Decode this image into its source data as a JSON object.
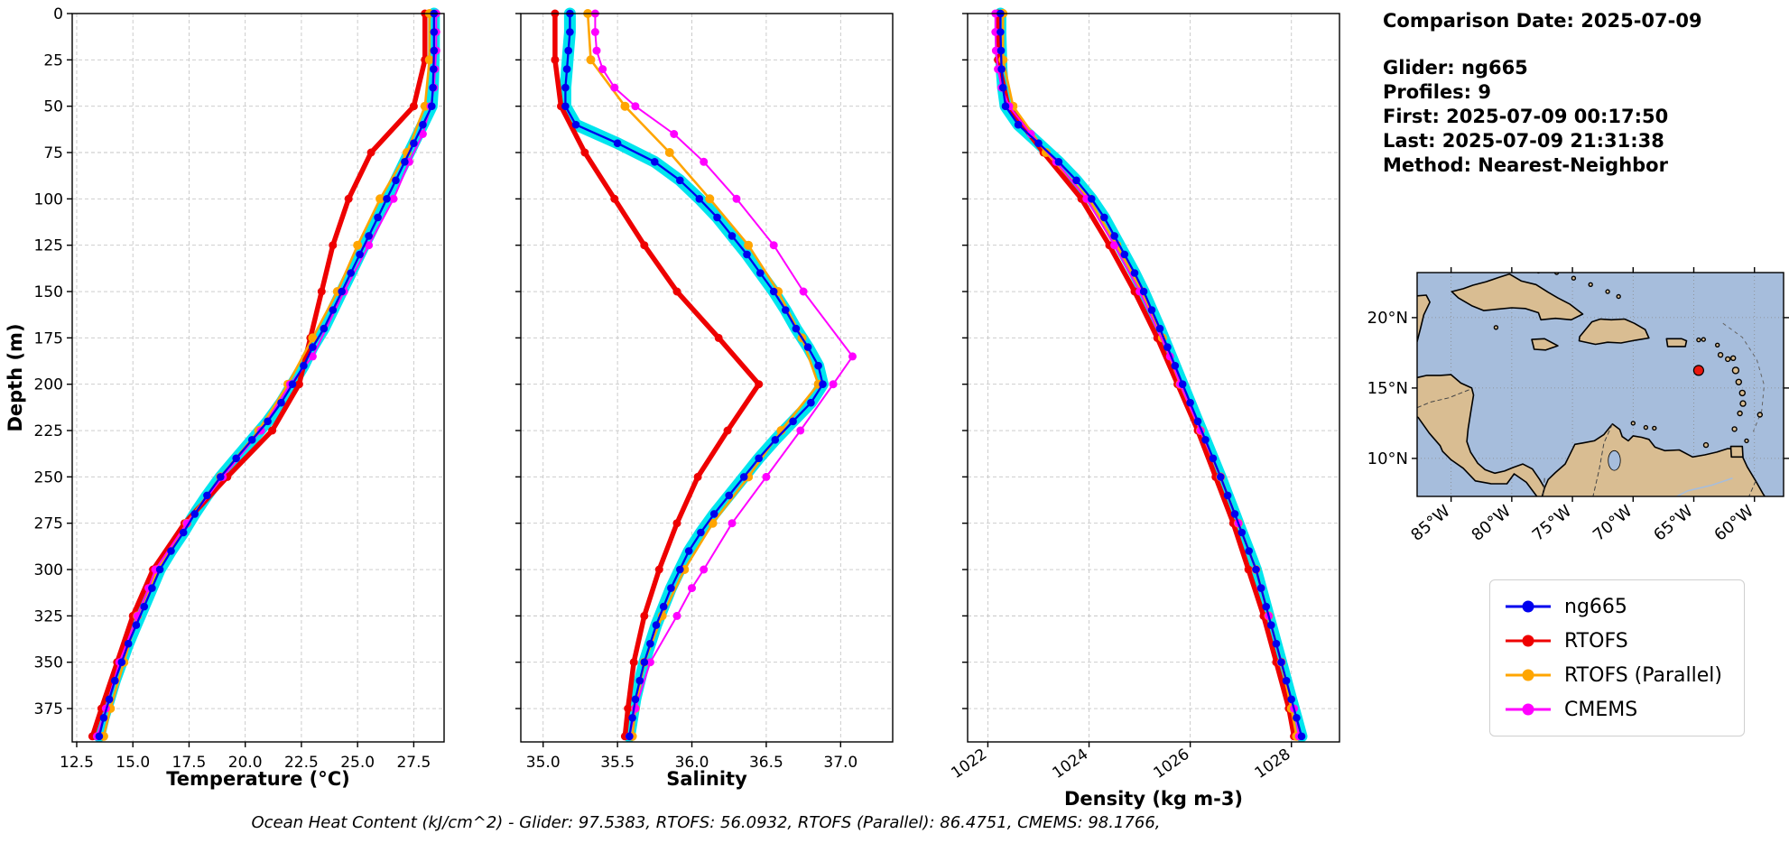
{
  "info_panel": {
    "comparison_date": "Comparison Date: 2025-07-09",
    "glider": "Glider: ng665",
    "profiles": "Profiles: 9",
    "first": "First: 2025-07-09 00:17:50",
    "last": "Last: 2025-07-09 21:31:38",
    "method": "Method: Nearest-Neighbor"
  },
  "footer": {
    "ohc_caption": "Ocean Heat Content (kJ/cm^2) - Glider: 97.5383,  RTOFS: 56.0932,  RTOFS (Parallel): 86.4751,  CMEMS: 98.1766,"
  },
  "legend": {
    "items": [
      {
        "label": "ng665",
        "color": "#0000ee"
      },
      {
        "label": "RTOFS",
        "color": "#ee0000"
      },
      {
        "label": "RTOFS (Parallel)",
        "color": "#ffa500"
      },
      {
        "label": "CMEMS",
        "color": "#ff00ff"
      }
    ]
  },
  "map": {
    "lon_range": [
      -87.8,
      -57.6
    ],
    "lat_range": [
      7.3,
      23.2
    ],
    "x_ticks": [
      -85,
      -80,
      -75,
      -70,
      -65,
      -60
    ],
    "x_tick_labels": [
      "85°W",
      "80°W",
      "75°W",
      "70°W",
      "65°W",
      "60°W"
    ],
    "y_ticks": [
      20,
      15,
      10
    ],
    "y_tick_labels": [
      "20°N",
      "15°N",
      "10°N"
    ],
    "marker": {
      "lon": -64.6,
      "lat": 16.25,
      "color": "#e8160c"
    },
    "ocean_color": "#a6bddc",
    "land_color": "#d9bd92"
  },
  "chart_data": [
    {
      "type": "line",
      "name": "temperature",
      "xlabel": "Temperature (°C)",
      "ylabel": "Depth (m)",
      "xlim": [
        12.3,
        28.85
      ],
      "ylim": [
        0,
        393
      ],
      "x_ticks": [
        12.5,
        15.0,
        17.5,
        20.0,
        22.5,
        25.0,
        27.5
      ],
      "x_tick_labels": [
        "12.5",
        "15.0",
        "17.5",
        "20.0",
        "22.5",
        "25.0",
        "27.5"
      ],
      "y_ticks": [
        0,
        25,
        50,
        75,
        100,
        125,
        150,
        175,
        200,
        225,
        250,
        275,
        300,
        325,
        350,
        375
      ],
      "show_y_tick_labels": true,
      "x_tick_rotation": 0,
      "grid": true,
      "series": [
        {
          "name": "RTOFS",
          "color": "#ee0000",
          "line_width": 5.5,
          "marker_radius": 4.5,
          "depths": [
            0,
            25,
            50,
            75,
            100,
            125,
            150,
            175,
            200,
            225,
            250,
            275,
            300,
            325,
            350,
            375,
            390
          ],
          "values": [
            28.0,
            28.0,
            27.5,
            25.6,
            24.6,
            23.9,
            23.4,
            22.9,
            22.4,
            21.2,
            19.2,
            17.3,
            15.9,
            15.0,
            14.3,
            13.6,
            13.2
          ]
        },
        {
          "name": "RTOFS (Parallel)",
          "color": "#ffa500",
          "line_width": 2.6,
          "marker_radius": 5,
          "depths": [
            0,
            25,
            50,
            75,
            100,
            125,
            150,
            175,
            200,
            225,
            250,
            275,
            300,
            325,
            350,
            375,
            390
          ],
          "values": [
            28.2,
            28.2,
            28.0,
            27.2,
            26.0,
            25.0,
            24.1,
            23.0,
            21.9,
            20.6,
            18.9,
            17.4,
            16.1,
            15.2,
            14.6,
            14.0,
            13.7
          ]
        },
        {
          "name": "CMEMS",
          "color": "#ff00ff",
          "line_width": 2.0,
          "marker_radius": 4.5,
          "depths": [
            0,
            10,
            20,
            30,
            40,
            50,
            65,
            80,
            100,
            125,
            150,
            185,
            200,
            225,
            250,
            275,
            300,
            310,
            325,
            350,
            375,
            390
          ],
          "values": [
            28.5,
            28.5,
            28.5,
            28.45,
            28.4,
            28.25,
            27.9,
            27.3,
            26.6,
            25.5,
            24.4,
            23.0,
            22.0,
            20.7,
            19.0,
            17.4,
            16.0,
            15.7,
            15.2,
            14.4,
            13.8,
            13.4
          ]
        },
        {
          "name": "ng665",
          "color": "#0000ee",
          "line_width": 2.3,
          "marker_radius": 4.3,
          "scatter_color": "#00e5ee",
          "scatter_width": 13,
          "depths": [
            0,
            10,
            20,
            30,
            40,
            50,
            60,
            70,
            80,
            90,
            100,
            110,
            120,
            130,
            140,
            150,
            160,
            170,
            180,
            190,
            200,
            210,
            220,
            230,
            240,
            250,
            260,
            270,
            280,
            290,
            300,
            310,
            320,
            330,
            340,
            350,
            360,
            370,
            380,
            390
          ],
          "values": [
            28.4,
            28.4,
            28.4,
            28.38,
            28.35,
            28.3,
            27.9,
            27.5,
            27.1,
            26.7,
            26.3,
            25.9,
            25.5,
            25.1,
            24.7,
            24.3,
            23.9,
            23.5,
            23.0,
            22.6,
            22.1,
            21.6,
            21.0,
            20.3,
            19.6,
            18.9,
            18.3,
            17.75,
            17.25,
            16.7,
            16.2,
            15.85,
            15.5,
            15.15,
            14.8,
            14.5,
            14.2,
            13.95,
            13.7,
            13.5
          ]
        }
      ]
    },
    {
      "type": "line",
      "name": "salinity",
      "xlabel": "Salinity",
      "ylabel": "",
      "xlim": [
        34.85,
        37.35
      ],
      "ylim": [
        0,
        393
      ],
      "x_ticks": [
        35.0,
        35.5,
        36.0,
        36.5,
        37.0
      ],
      "x_tick_labels": [
        "35.0",
        "35.5",
        "36.0",
        "36.5",
        "37.0"
      ],
      "y_ticks": [
        0,
        25,
        50,
        75,
        100,
        125,
        150,
        175,
        200,
        225,
        250,
        275,
        300,
        325,
        350,
        375
      ],
      "show_y_tick_labels": false,
      "x_tick_rotation": 0,
      "grid": true,
      "series": [
        {
          "name": "RTOFS",
          "color": "#ee0000",
          "line_width": 5.5,
          "marker_radius": 4.5,
          "depths": [
            0,
            25,
            50,
            75,
            100,
            125,
            150,
            175,
            200,
            225,
            250,
            275,
            300,
            325,
            350,
            375,
            390
          ],
          "values": [
            35.08,
            35.08,
            35.12,
            35.28,
            35.48,
            35.68,
            35.9,
            36.18,
            36.45,
            36.24,
            36.04,
            35.9,
            35.78,
            35.68,
            35.61,
            35.57,
            35.55
          ]
        },
        {
          "name": "RTOFS (Parallel)",
          "color": "#ffa500",
          "line_width": 2.6,
          "marker_radius": 5,
          "depths": [
            0,
            25,
            50,
            75,
            100,
            125,
            150,
            175,
            200,
            225,
            250,
            275,
            300,
            325,
            350,
            375,
            390
          ],
          "values": [
            35.3,
            35.32,
            35.55,
            35.85,
            36.12,
            36.38,
            36.58,
            36.74,
            36.85,
            36.6,
            36.38,
            36.14,
            35.95,
            35.8,
            35.68,
            35.62,
            35.6
          ]
        },
        {
          "name": "CMEMS",
          "color": "#ff00ff",
          "line_width": 2.0,
          "marker_radius": 4.5,
          "depths": [
            0,
            10,
            20,
            30,
            40,
            50,
            65,
            80,
            100,
            125,
            150,
            185,
            200,
            225,
            250,
            275,
            300,
            310,
            325,
            350,
            375,
            390
          ],
          "values": [
            35.35,
            35.35,
            35.36,
            35.4,
            35.48,
            35.62,
            35.88,
            36.08,
            36.3,
            36.55,
            36.75,
            37.08,
            36.95,
            36.73,
            36.5,
            36.27,
            36.08,
            36.0,
            35.9,
            35.72,
            35.62,
            35.58
          ]
        },
        {
          "name": "ng665",
          "color": "#0000ee",
          "line_width": 2.3,
          "marker_radius": 4.3,
          "scatter_color": "#00e5ee",
          "scatter_width": 13,
          "depths": [
            0,
            10,
            20,
            30,
            40,
            50,
            60,
            70,
            80,
            90,
            100,
            110,
            120,
            130,
            140,
            150,
            160,
            170,
            180,
            190,
            200,
            210,
            220,
            230,
            240,
            250,
            260,
            270,
            280,
            290,
            300,
            310,
            320,
            330,
            340,
            350,
            360,
            370,
            380,
            390
          ],
          "values": [
            35.18,
            35.18,
            35.17,
            35.16,
            35.15,
            35.15,
            35.22,
            35.5,
            35.75,
            35.92,
            36.05,
            36.17,
            36.27,
            36.37,
            36.46,
            36.55,
            36.63,
            36.7,
            36.78,
            36.85,
            36.88,
            36.8,
            36.68,
            36.56,
            36.45,
            36.35,
            36.25,
            36.15,
            36.06,
            35.98,
            35.92,
            35.86,
            35.81,
            35.76,
            35.72,
            35.68,
            35.65,
            35.62,
            35.6,
            35.58
          ]
        }
      ]
    },
    {
      "type": "line",
      "name": "density",
      "xlabel": "Density (kg m-3)",
      "ylabel": "",
      "xlim": [
        1021.6,
        1028.95
      ],
      "ylim": [
        0,
        393
      ],
      "x_ticks": [
        1022,
        1024,
        1026,
        1028
      ],
      "x_tick_labels": [
        "1022",
        "1024",
        "1026",
        "1028"
      ],
      "y_ticks": [
        0,
        25,
        50,
        75,
        100,
        125,
        150,
        175,
        200,
        225,
        250,
        275,
        300,
        325,
        350,
        375
      ],
      "show_y_tick_labels": false,
      "x_tick_rotation": -35,
      "grid": true,
      "series": [
        {
          "name": "RTOFS",
          "color": "#ee0000",
          "line_width": 5.5,
          "marker_radius": 4.5,
          "depths": [
            0,
            25,
            50,
            75,
            100,
            125,
            150,
            175,
            200,
            225,
            250,
            275,
            300,
            325,
            350,
            375,
            390
          ],
          "values": [
            1022.2,
            1022.2,
            1022.4,
            1023.1,
            1023.85,
            1024.4,
            1024.9,
            1025.35,
            1025.75,
            1026.15,
            1026.5,
            1026.85,
            1027.15,
            1027.45,
            1027.7,
            1027.95,
            1028.05
          ]
        },
        {
          "name": "RTOFS (Parallel)",
          "color": "#ffa500",
          "line_width": 2.6,
          "marker_radius": 5,
          "depths": [
            0,
            25,
            50,
            75,
            100,
            125,
            150,
            175,
            200,
            225,
            250,
            275,
            300,
            325,
            350,
            375,
            390
          ],
          "values": [
            1022.3,
            1022.3,
            1022.5,
            1023.15,
            1024.0,
            1024.55,
            1025.05,
            1025.45,
            1025.8,
            1026.2,
            1026.6,
            1026.95,
            1027.3,
            1027.55,
            1027.8,
            1028.0,
            1028.1
          ]
        },
        {
          "name": "CMEMS",
          "color": "#ff00ff",
          "line_width": 2.0,
          "marker_radius": 4.5,
          "depths": [
            0,
            10,
            20,
            30,
            40,
            50,
            65,
            80,
            100,
            125,
            150,
            185,
            200,
            225,
            250,
            275,
            300,
            310,
            325,
            350,
            375,
            390
          ],
          "values": [
            1022.15,
            1022.15,
            1022.16,
            1022.2,
            1022.27,
            1022.42,
            1022.85,
            1023.35,
            1023.95,
            1024.5,
            1025.0,
            1025.6,
            1025.8,
            1026.2,
            1026.6,
            1026.95,
            1027.3,
            1027.4,
            1027.55,
            1027.8,
            1028.05,
            1028.15
          ]
        },
        {
          "name": "ng665",
          "color": "#0000ee",
          "line_width": 2.3,
          "marker_radius": 4.3,
          "scatter_color": "#00e5ee",
          "scatter_width": 13,
          "depths": [
            0,
            10,
            20,
            30,
            40,
            50,
            60,
            70,
            80,
            90,
            100,
            110,
            120,
            130,
            140,
            150,
            160,
            170,
            180,
            190,
            200,
            210,
            220,
            230,
            240,
            250,
            260,
            270,
            280,
            290,
            300,
            310,
            320,
            330,
            340,
            350,
            360,
            370,
            380,
            390
          ],
          "values": [
            1022.25,
            1022.25,
            1022.26,
            1022.27,
            1022.3,
            1022.35,
            1022.6,
            1023.0,
            1023.4,
            1023.75,
            1024.05,
            1024.3,
            1024.5,
            1024.7,
            1024.9,
            1025.08,
            1025.24,
            1025.4,
            1025.55,
            1025.7,
            1025.85,
            1026.0,
            1026.15,
            1026.3,
            1026.45,
            1026.6,
            1026.74,
            1026.88,
            1027.02,
            1027.16,
            1027.3,
            1027.4,
            1027.5,
            1027.6,
            1027.7,
            1027.8,
            1027.9,
            1028.0,
            1028.1,
            1028.2
          ]
        }
      ]
    }
  ]
}
